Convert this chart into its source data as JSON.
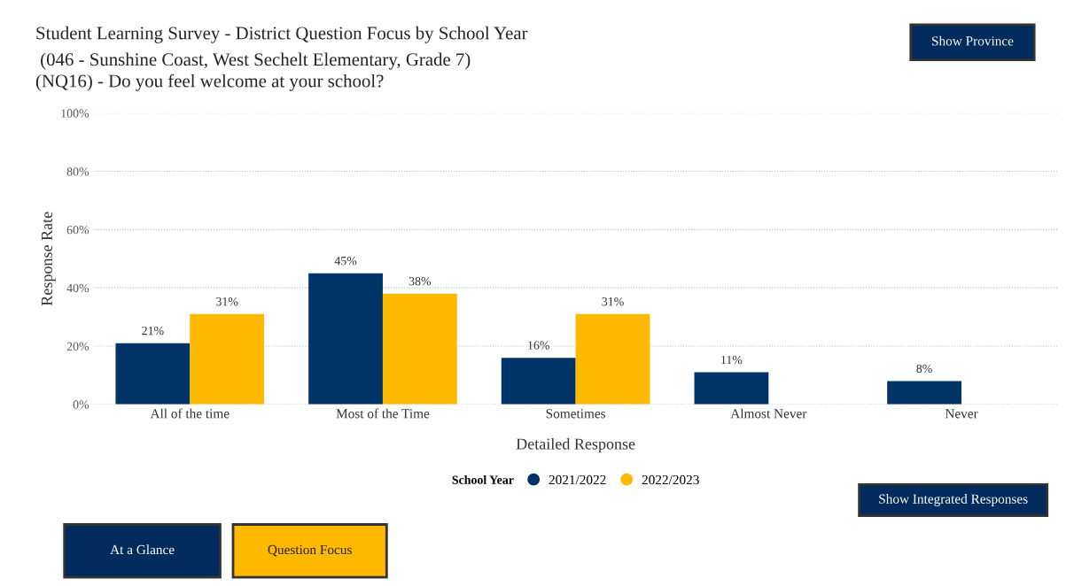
{
  "chart_data": {
    "type": "bar",
    "title": "Student Learning Survey - District Question Focus by School Year",
    "subtitle": " (046 - Sunshine Coast, West Sechelt Elementary, Grade 7)\n(NQ16) - Do you feel welcome at your school?",
    "xlabel": "Detailed Response",
    "ylabel": "Response Rate",
    "legend_title": "School Year",
    "categories": [
      "All of the time",
      "Most of the Time",
      "Sometimes",
      "Almost Never",
      "Never"
    ],
    "series": [
      {
        "name": "2021/2022",
        "color": "#003366",
        "values": [
          21,
          45,
          16,
          11,
          8
        ],
        "value_labels": [
          "21%",
          "45%",
          "16%",
          "11%",
          "8%"
        ]
      },
      {
        "name": "2022/2023",
        "color": "#ffb900",
        "values": [
          31,
          38,
          31,
          null,
          null
        ],
        "value_labels": [
          "31%",
          "38%",
          "31%",
          null,
          null
        ]
      }
    ],
    "ylim": [
      0,
      100
    ],
    "yticks": [
      {
        "value": 0,
        "label": "0%"
      },
      {
        "value": 20,
        "label": "20%"
      },
      {
        "value": 40,
        "label": "40%"
      },
      {
        "value": 60,
        "label": "60%"
      },
      {
        "value": 80,
        "label": "80%"
      },
      {
        "value": 100,
        "label": "100%"
      }
    ],
    "grid": "y",
    "legend": "bottom",
    "annotations": [
      "Show Province",
      "Show Integrated Responses",
      "At a Glance",
      "Question Focus"
    ]
  }
}
